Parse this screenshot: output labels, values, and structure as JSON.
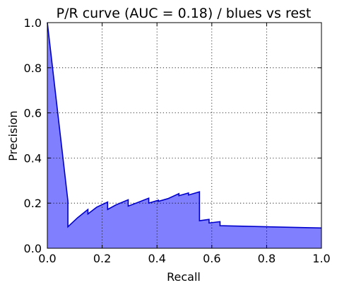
{
  "chart_data": {
    "type": "area",
    "title": "P/R curve (AUC = 0.18) / blues vs rest",
    "xlabel": "Recall",
    "ylabel": "Precision",
    "xlim": [
      0.0,
      1.0
    ],
    "ylim": [
      0.0,
      1.0
    ],
    "grid": true,
    "x_ticks": [
      0.0,
      0.2,
      0.4,
      0.6,
      0.8,
      1.0
    ],
    "y_ticks": [
      0.0,
      0.2,
      0.4,
      0.6,
      0.8,
      1.0
    ],
    "x_tick_labels": [
      "0.0",
      "0.2",
      "0.4",
      "0.6",
      "0.8",
      "1.0"
    ],
    "y_tick_labels": [
      "0.0",
      "0.2",
      "0.4",
      "0.6",
      "0.8",
      "1.0"
    ],
    "series": [
      {
        "name": "blues vs rest",
        "line_color": "#0000cc",
        "fill_color": "#8080ff",
        "x": [
          0.0,
          0.075,
          0.075,
          0.11,
          0.148,
          0.148,
          0.18,
          0.22,
          0.22,
          0.25,
          0.295,
          0.295,
          0.33,
          0.37,
          0.37,
          0.405,
          0.405,
          0.44,
          0.48,
          0.48,
          0.515,
          0.515,
          0.555,
          0.555,
          0.59,
          0.59,
          0.63,
          0.63,
          1.0
        ],
        "y": [
          1.0,
          0.21,
          0.095,
          0.135,
          0.172,
          0.152,
          0.182,
          0.205,
          0.172,
          0.192,
          0.215,
          0.187,
          0.203,
          0.222,
          0.2,
          0.213,
          0.208,
          0.22,
          0.242,
          0.233,
          0.245,
          0.236,
          0.25,
          0.122,
          0.128,
          0.112,
          0.118,
          0.1,
          0.09
        ]
      }
    ]
  }
}
